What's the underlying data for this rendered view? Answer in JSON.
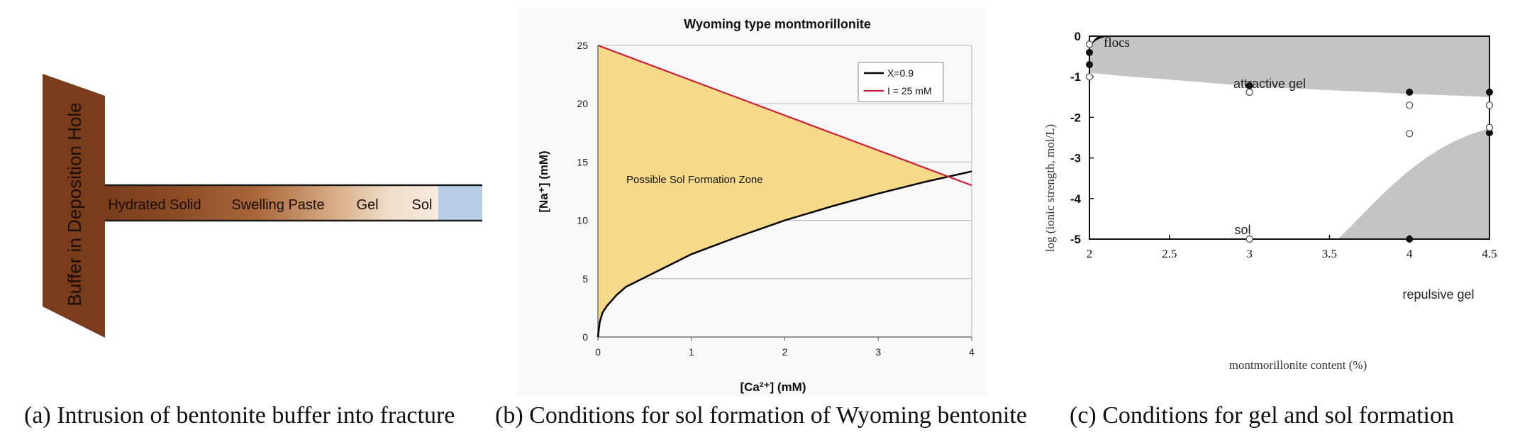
{
  "panel_a": {
    "buffer_label": "Buffer in Deposition Hole",
    "zones": [
      "Hydrated Solid",
      "Swelling Paste",
      "Gel",
      "Sol"
    ],
    "caption": "(a) Intrusion of bentonite buffer into fracture",
    "colors": {
      "buffer": "#7a3d1c",
      "sol_water": "#b8cde6"
    }
  },
  "panel_b": {
    "caption": "(b) Conditions for sol formation of Wyoming bentonite",
    "zone_label": "Possible Sol Formation Zone",
    "colors": {
      "fill": "#f7d98a",
      "line_x": "#000000",
      "line_i": "#cc1f3a"
    }
  },
  "panel_c": {
    "caption": "(c) Conditions for gel and sol formation",
    "region_labels": {
      "flocs": "flocs",
      "attractive": "attractive gel",
      "sol": "sol",
      "repulsive": "repulsive gel"
    },
    "colors": {
      "region": "#c4c4c4",
      "flocs": "#000000"
    }
  },
  "chart_data": [
    {
      "type": "line",
      "title": "Wyoming type montmorillonite",
      "xlabel": "[Ca²⁺] (mM)",
      "ylabel": "[Na⁺] (mM)",
      "xlim": [
        0,
        4
      ],
      "ylim": [
        0,
        25
      ],
      "xticks": [
        "0",
        "1",
        "2",
        "3",
        "4"
      ],
      "yticks": [
        "0",
        "5",
        "10",
        "15",
        "20",
        "25"
      ],
      "grid": "horizontal",
      "legend_position": "top-right",
      "series": [
        {
          "name": "X=0.9",
          "x": [
            0,
            0.02,
            0.05,
            0.1,
            0.2,
            0.3,
            0.5,
            0.75,
            1.0,
            1.5,
            2.0,
            2.5,
            3.0,
            3.5,
            4.0
          ],
          "y": [
            0,
            1.3,
            2.1,
            2.7,
            3.6,
            4.3,
            5.1,
            6.1,
            7.1,
            8.6,
            10.0,
            11.2,
            12.3,
            13.3,
            14.2
          ]
        },
        {
          "name": "I = 25 mM",
          "x": [
            0,
            4
          ],
          "y": [
            25,
            13
          ]
        }
      ]
    },
    {
      "type": "scatter",
      "xlabel": "montmorillonite content (%)",
      "ylabel": "log (ionic strength, mol/L)",
      "xlim": [
        2,
        4.5
      ],
      "ylim": [
        -5,
        0
      ],
      "xticks": [
        "2",
        "2.5",
        "3",
        "3.5",
        "4",
        "4.5"
      ],
      "yticks": [
        "0",
        "-1",
        "-2",
        "-3",
        "-4",
        "-5"
      ],
      "series": [
        {
          "name": "filled",
          "x": [
            2,
            2,
            3,
            4,
            4,
            4.5,
            4.5
          ],
          "y": [
            -0.4,
            -0.7,
            -1.22,
            -1.38,
            -5,
            -1.38,
            -2.38
          ]
        },
        {
          "name": "open",
          "x": [
            2,
            2,
            3,
            3,
            4,
            4,
            4.5,
            4.5
          ],
          "y": [
            -0.2,
            -1.0,
            -1.38,
            -5,
            -1.7,
            -2.4,
            -1.7,
            -2.25
          ]
        }
      ]
    }
  ]
}
